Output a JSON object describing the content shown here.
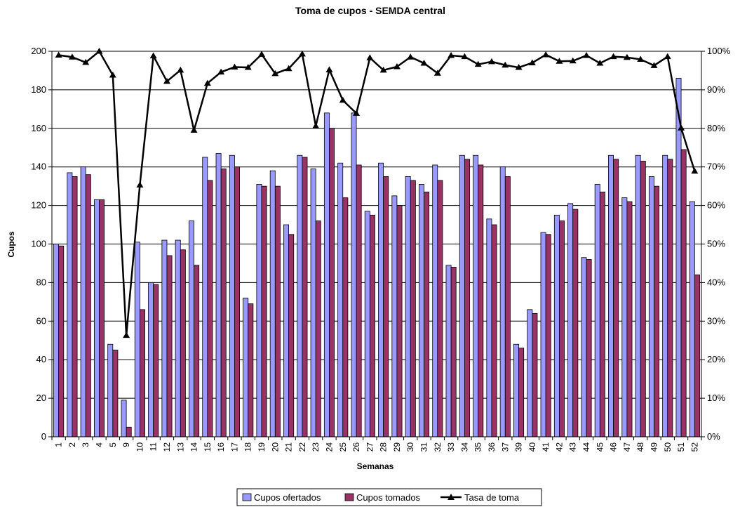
{
  "chart_data": {
    "type": "bar",
    "title": "Toma de cupos - SEMDA central",
    "xlabel": "Semanas",
    "ylabel": "Cupos",
    "ylim": [
      0,
      200
    ],
    "y2lim": [
      0,
      100
    ],
    "yticks": [
      "0",
      "20",
      "40",
      "60",
      "80",
      "100",
      "120",
      "140",
      "160",
      "180",
      "200"
    ],
    "y2ticks": [
      "0%",
      "10%",
      "20%",
      "30%",
      "40%",
      "50%",
      "60%",
      "70%",
      "80%",
      "90%",
      "100%"
    ],
    "grid": "horizontal",
    "legend_position": "bottom",
    "categories": [
      "1",
      "2",
      "3",
      "4",
      "5",
      "9",
      "10",
      "11",
      "12",
      "13",
      "14",
      "15",
      "16",
      "17",
      "18",
      "19",
      "20",
      "21",
      "22",
      "23",
      "24",
      "25",
      "26",
      "27",
      "28",
      "29",
      "30",
      "31",
      "32",
      "33",
      "34",
      "35",
      "36",
      "37",
      "39",
      "40",
      "41",
      "42",
      "43",
      "44",
      "45",
      "46",
      "47",
      "48",
      "49",
      "50",
      "51",
      "52"
    ],
    "series": [
      {
        "name": "Cupos ofertados",
        "type": "bar",
        "color": "#9999ff",
        "values": [
          100,
          137,
          140,
          123,
          48,
          19,
          101,
          80,
          102,
          102,
          112,
          145,
          147,
          146,
          72,
          131,
          138,
          110,
          146,
          139,
          168,
          142,
          168,
          117,
          142,
          125,
          135,
          131,
          141,
          89,
          146,
          146,
          113,
          140,
          48,
          66,
          106,
          115,
          121,
          93,
          131,
          146,
          124,
          146,
          135,
          146,
          186,
          122
        ]
      },
      {
        "name": "Cupos tomados",
        "type": "bar",
        "color": "#993366",
        "values": [
          99,
          135,
          136,
          123,
          45,
          5,
          66,
          79,
          94,
          97,
          89,
          133,
          139,
          140,
          69,
          130,
          130,
          105,
          145,
          112,
          160,
          124,
          141,
          115,
          135,
          120,
          133,
          127,
          133,
          88,
          144,
          141,
          110,
          135,
          46,
          64,
          105,
          112,
          118,
          92,
          127,
          144,
          122,
          143,
          130,
          144,
          149,
          84
        ]
      },
      {
        "name": "Tasa de toma",
        "type": "line",
        "axis": "right",
        "color": "#000000",
        "values": [
          99.0,
          98.5,
          97.1,
          100.0,
          93.8,
          26.3,
          65.3,
          98.8,
          92.2,
          95.1,
          79.5,
          91.7,
          94.6,
          95.9,
          95.8,
          99.2,
          94.2,
          95.5,
          99.3,
          80.6,
          95.2,
          87.3,
          83.9,
          98.3,
          95.1,
          96.0,
          98.5,
          96.9,
          94.3,
          98.9,
          98.6,
          96.6,
          97.3,
          96.4,
          95.8,
          97.0,
          99.1,
          97.4,
          97.5,
          98.9,
          96.9,
          98.6,
          98.4,
          97.9,
          96.3,
          98.6,
          80.1,
          68.9
        ]
      }
    ]
  }
}
